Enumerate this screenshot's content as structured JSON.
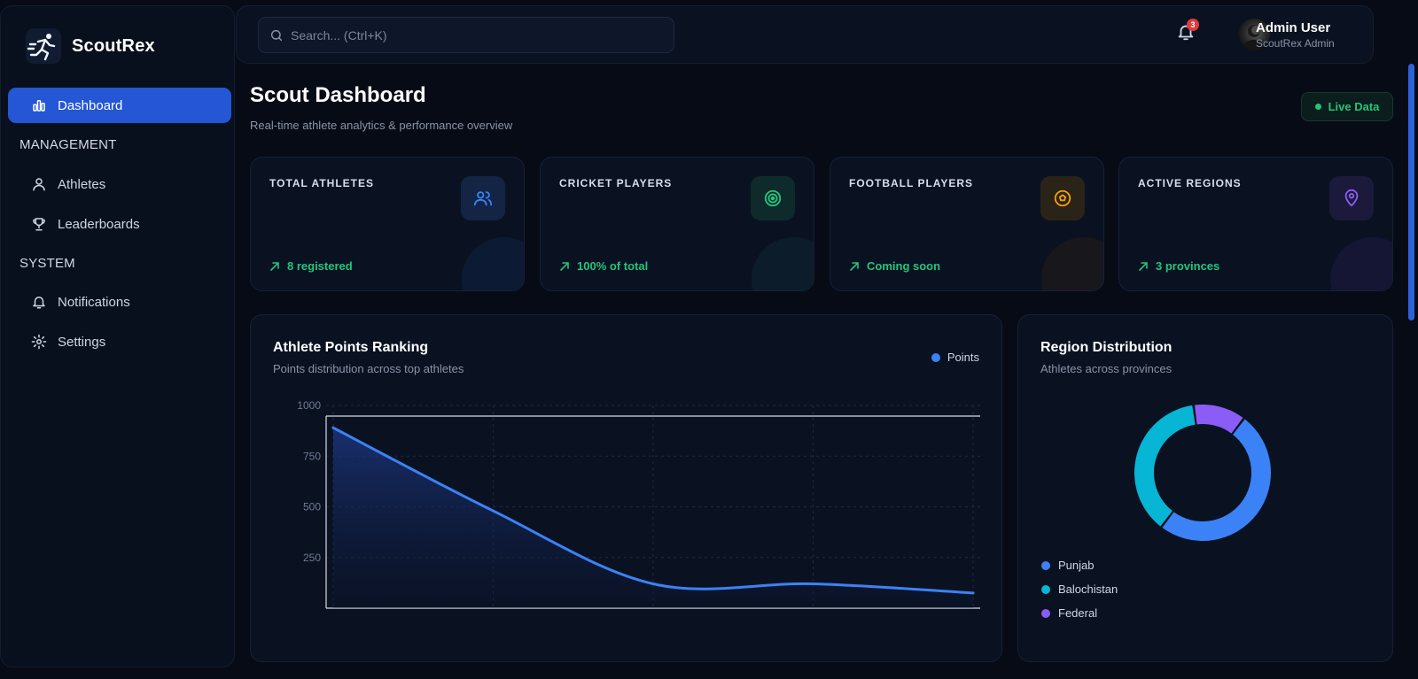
{
  "app": {
    "name": "ScoutRex"
  },
  "sidebar": {
    "items": [
      {
        "label": "Dashboard",
        "icon": "bar-chart-icon",
        "active": true
      },
      {
        "label": "Athletes",
        "icon": "user-icon"
      },
      {
        "label": "Leaderboards",
        "icon": "trophy-icon"
      },
      {
        "label": "Notifications",
        "icon": "bell-icon"
      },
      {
        "label": "Settings",
        "icon": "gear-icon"
      }
    ],
    "sections": {
      "management": "MANAGEMENT",
      "system": "SYSTEM"
    }
  },
  "topbar": {
    "search_placeholder": "Search... (Ctrl+K)",
    "notification_count": "3",
    "user": {
      "name": "Admin User",
      "role": "ScoutRex Admin"
    }
  },
  "header": {
    "title": "Scout Dashboard",
    "subtitle": "Real-time athlete analytics & performance overview",
    "live_label": "Live Data"
  },
  "stats": [
    {
      "label": "TOTAL ATHLETES",
      "trend": "8 registered",
      "icon": "users-icon",
      "accent": "#3b82f6"
    },
    {
      "label": "CRICKET PLAYERS",
      "trend": "100% of total",
      "icon": "target-icon",
      "accent": "#22c57c"
    },
    {
      "label": "FOOTBALL PLAYERS",
      "trend": "Coming soon",
      "icon": "football-icon",
      "accent": "#f59e0b"
    },
    {
      "label": "ACTIVE REGIONS",
      "trend": "3 provinces",
      "icon": "map-pin-icon",
      "accent": "#8b5cf6"
    }
  ],
  "points_panel": {
    "title": "Athlete Points Ranking",
    "subtitle": "Points distribution across top athletes",
    "legend_label": "Points"
  },
  "region_panel": {
    "title": "Region Distribution",
    "subtitle": "Athletes across provinces"
  },
  "chart_data": [
    {
      "type": "area",
      "series": [
        {
          "name": "Points",
          "values": [
            890,
            480,
            120,
            120,
            75
          ],
          "color": "#3b82f6"
        }
      ],
      "categories": [
        "",
        "",
        "",
        "",
        ""
      ],
      "ylim": [
        0,
        1000
      ],
      "yticks": [
        250,
        500,
        750,
        1000
      ],
      "grid": true,
      "legend": "top-right"
    },
    {
      "type": "pie",
      "categories": [
        "Punjab",
        "Balochistan",
        "Federal"
      ],
      "values": [
        4,
        3,
        1
      ],
      "colors": [
        "#3b82f6",
        "#06b6d4",
        "#8b5cf6"
      ],
      "legend": "bottom-left"
    }
  ]
}
